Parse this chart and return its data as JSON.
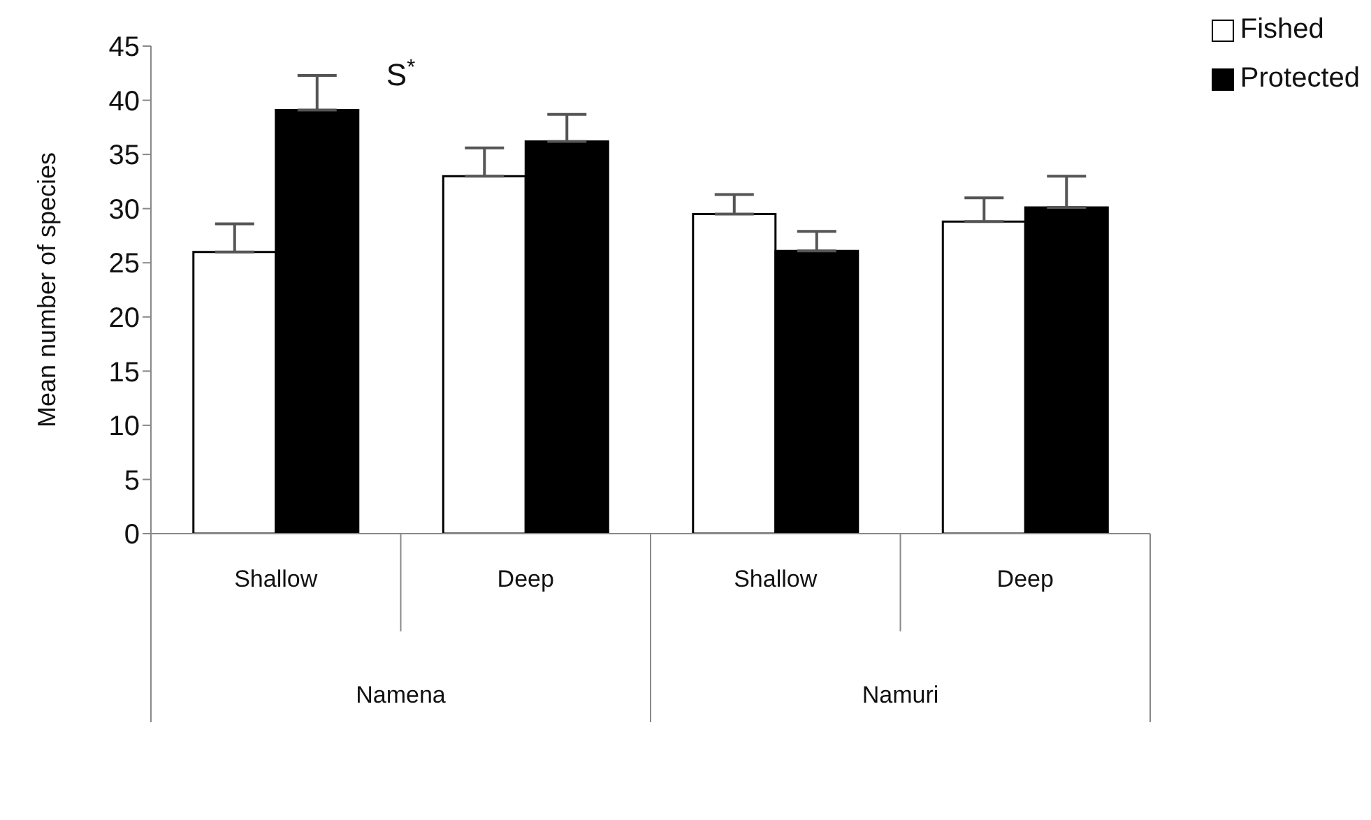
{
  "chart_data": {
    "type": "bar",
    "ylabel": "Mean number of species",
    "categories": [
      "Shallow",
      "Deep",
      "Shallow",
      "Deep"
    ],
    "series": [
      {
        "name": "Fished",
        "color": "#ffffff",
        "values": [
          26,
          33,
          29.5,
          28.8
        ],
        "errors": [
          [
            26,
            28.6
          ],
          [
            33,
            35.6
          ],
          [
            29.5,
            31.3
          ],
          [
            28.8,
            31
          ]
        ]
      },
      {
        "name": "Protected",
        "color": "#000000",
        "values": [
          39.1,
          36.2,
          26.1,
          30.1
        ],
        "errors": [
          [
            39.1,
            42.3
          ],
          [
            36.2,
            38.7
          ],
          [
            26.1,
            27.9
          ],
          [
            30.1,
            33
          ]
        ]
      }
    ],
    "ylim": [
      0,
      45
    ],
    "yticks": [
      0,
      5,
      10,
      15,
      20,
      25,
      30,
      35,
      40,
      45
    ],
    "grid": false,
    "legend": "top right",
    "annotations": [
      "S$^{*}$",
      "Namena",
      "Namuri"
    ]
  }
}
